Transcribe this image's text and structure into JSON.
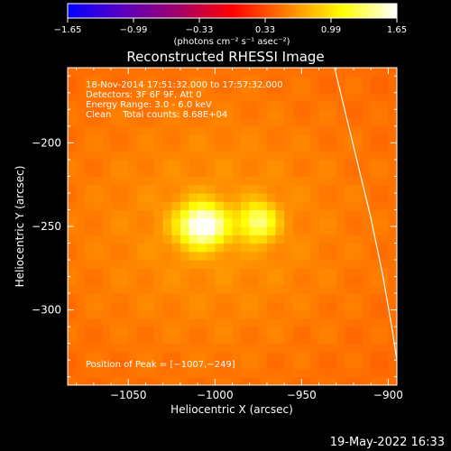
{
  "chart_data": {
    "type": "heatmap",
    "title": "Reconstructed RHESSI Image",
    "xlabel": "Heliocentric X (arcsec)",
    "ylabel": "Heliocentric Y (arcsec)",
    "xlim": [
      -1085,
      -895
    ],
    "ylim": [
      -345,
      -155
    ],
    "x_ticks": [
      -1050,
      -1000,
      -950,
      -900
    ],
    "x_tick_labels": [
      "−1050",
      "−1000",
      "−950",
      "−900"
    ],
    "y_ticks": [
      -200,
      -250,
      -300
    ],
    "y_tick_labels": [
      "−200",
      "−250",
      "−300"
    ],
    "colorbar": {
      "range": [
        -1.65,
        1.65
      ],
      "ticks": [
        -1.65,
        -0.99,
        -0.33,
        0.33,
        0.99,
        1.65
      ],
      "tick_labels": [
        "−1.65",
        "−0.99",
        "−0.33",
        "0.33",
        "0.99",
        "1.65"
      ],
      "unit_label": "(photons cm⁻² s⁻¹ asec⁻²)",
      "colors": [
        "#0000ff",
        "#5a00c0",
        "#a0006a",
        "#ff0000",
        "#ff8000",
        "#ffff00",
        "#ffffff"
      ]
    },
    "sources": [
      {
        "x": -1007,
        "y": -249,
        "peak": 1.65,
        "sigma_x": 10,
        "sigma_y": 9
      },
      {
        "x": -975,
        "y": -247,
        "peak": 1.25,
        "sigma_x": 7.5,
        "sigma_y": 8
      }
    ],
    "background_level": 0.45,
    "annotations": [
      "18-Nov-2014 17:51:32.000 to 17:57:32.000",
      "Detectors: 3F 6F 9F, Att 0",
      "Energy Range: 3.0 - 6.0 keV",
      "Clean    Total counts: 8.68E+04"
    ],
    "peak_label": "Position of Peak = [−1007,−249]",
    "limb_curve": {
      "color": "#ffffff",
      "points": [
        [
          -931,
          -155
        ],
        [
          -924,
          -185
        ],
        [
          -917,
          -215
        ],
        [
          -910,
          -245
        ],
        [
          -903,
          -280
        ],
        [
          -898,
          -310
        ],
        [
          -895,
          -330
        ]
      ]
    }
  },
  "footer": {
    "timestamp": "19-May-2022 16:33"
  }
}
